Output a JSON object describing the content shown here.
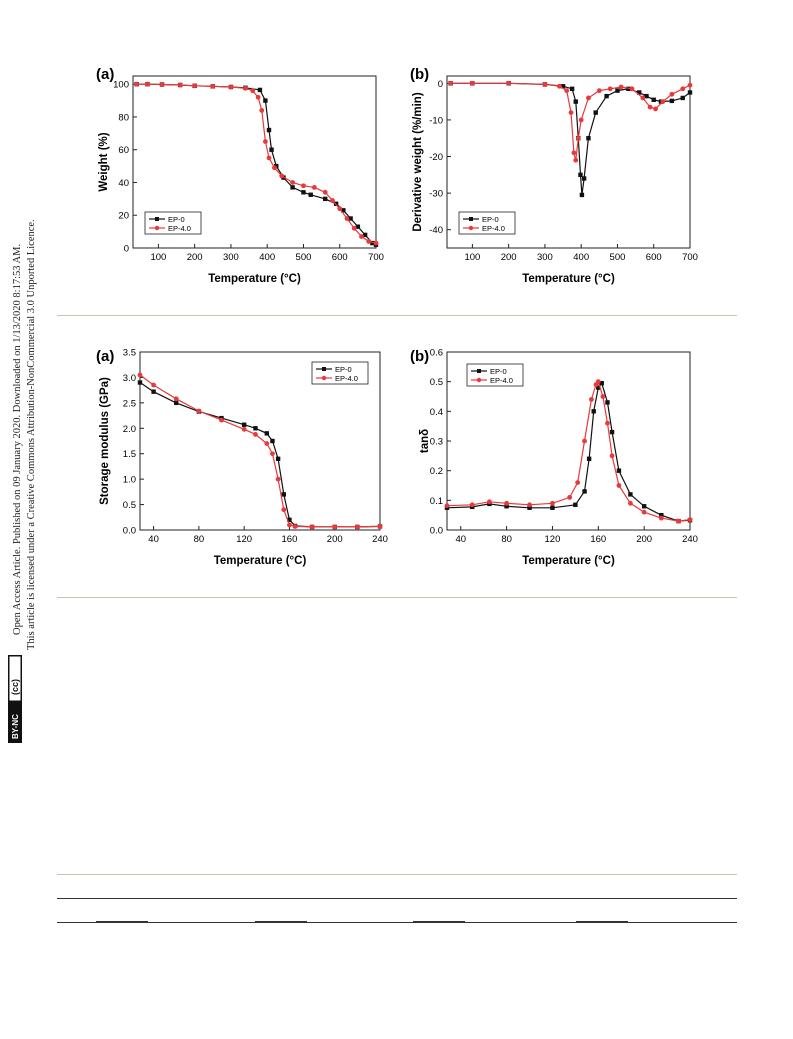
{
  "sidebar": {
    "line1": "Open Access Article. Published on 09 January 2020. Downloaded on 1/13/2020 8:17:53 AM.",
    "line2": "This article is licensed under a Creative Commons Attribution-NonCommercial 3.0 Unported Licence.",
    "badge_cc": "(cc)",
    "badge_text": "BY-NC"
  },
  "colors": {
    "series_a": "#111111",
    "series_b": "#e8393b",
    "rule_light": "#c8c6a8",
    "rule_dark": "#333333"
  },
  "chart_data": [
    {
      "id": "tga-weight",
      "panel": "(a)",
      "type": "line",
      "xlabel": "Temperature (°C)",
      "ylabel": "Weight (%)",
      "xlim": [
        30,
        700
      ],
      "ylim": [
        0,
        105
      ],
      "xticks": [
        100,
        200,
        300,
        400,
        500,
        600,
        700
      ],
      "yticks": [
        0,
        20,
        40,
        60,
        80,
        100
      ],
      "legend": "bottom-left",
      "series": [
        {
          "name": "EP-0",
          "marker": "square",
          "points": [
            [
              40,
              100
            ],
            [
              70,
              100
            ],
            [
              110,
              99.8
            ],
            [
              160,
              99.5
            ],
            [
              200,
              99
            ],
            [
              250,
              98.7
            ],
            [
              300,
              98.3
            ],
            [
              340,
              97.8
            ],
            [
              380,
              96.5
            ],
            [
              395,
              90
            ],
            [
              405,
              72
            ],
            [
              412,
              60
            ],
            [
              425,
              50
            ],
            [
              445,
              43
            ],
            [
              470,
              37
            ],
            [
              500,
              34
            ],
            [
              520,
              32.5
            ],
            [
              560,
              30
            ],
            [
              590,
              27
            ],
            [
              610,
              23
            ],
            [
              630,
              18
            ],
            [
              650,
              13
            ],
            [
              670,
              8
            ],
            [
              690,
              3
            ],
            [
              700,
              2
            ]
          ]
        },
        {
          "name": "EP-4.0",
          "marker": "circle",
          "points": [
            [
              40,
              100
            ],
            [
              70,
              100
            ],
            [
              110,
              99.8
            ],
            [
              160,
              99.5
            ],
            [
              200,
              99
            ],
            [
              250,
              98.7
            ],
            [
              300,
              98.3
            ],
            [
              340,
              97.5
            ],
            [
              360,
              96
            ],
            [
              375,
              92
            ],
            [
              385,
              84
            ],
            [
              395,
              65
            ],
            [
              405,
              55
            ],
            [
              420,
              49
            ],
            [
              440,
              44
            ],
            [
              470,
              40
            ],
            [
              500,
              38
            ],
            [
              530,
              37
            ],
            [
              560,
              34
            ],
            [
              580,
              29
            ],
            [
              600,
              24
            ],
            [
              620,
              18
            ],
            [
              640,
              12
            ],
            [
              660,
              7
            ],
            [
              680,
              4
            ],
            [
              700,
              3
            ]
          ]
        }
      ]
    },
    {
      "id": "dtg",
      "panel": "(b)",
      "type": "line",
      "xlabel": "Temperature (°C)",
      "ylabel": "Derivative weight (%/min)",
      "xlim": [
        30,
        700
      ],
      "ylim": [
        -45,
        2
      ],
      "xticks": [
        100,
        200,
        300,
        400,
        500,
        600,
        700
      ],
      "yticks": [
        0,
        -10,
        -20,
        -30,
        -40
      ],
      "legend": "bottom-left",
      "series": [
        {
          "name": "EP-0",
          "marker": "square",
          "points": [
            [
              40,
              0
            ],
            [
              100,
              0
            ],
            [
              200,
              0
            ],
            [
              300,
              -0.3
            ],
            [
              350,
              -0.8
            ],
            [
              375,
              -1.5
            ],
            [
              385,
              -5
            ],
            [
              392,
              -15
            ],
            [
              398,
              -25
            ],
            [
              402,
              -30.5
            ],
            [
              408,
              -26
            ],
            [
              420,
              -15
            ],
            [
              440,
              -8
            ],
            [
              470,
              -3.5
            ],
            [
              500,
              -2
            ],
            [
              530,
              -1.5
            ],
            [
              560,
              -2.5
            ],
            [
              580,
              -3.5
            ],
            [
              600,
              -4.5
            ],
            [
              620,
              -5
            ],
            [
              650,
              -4.8
            ],
            [
              680,
              -4
            ],
            [
              700,
              -2.5
            ]
          ]
        },
        {
          "name": "EP-4.0",
          "marker": "circle",
          "points": [
            [
              40,
              0
            ],
            [
              100,
              0
            ],
            [
              200,
              0
            ],
            [
              300,
              -0.3
            ],
            [
              340,
              -0.8
            ],
            [
              360,
              -2
            ],
            [
              372,
              -8
            ],
            [
              380,
              -19
            ],
            [
              385,
              -21
            ],
            [
              392,
              -15
            ],
            [
              400,
              -10
            ],
            [
              420,
              -4
            ],
            [
              450,
              -2
            ],
            [
              480,
              -1.5
            ],
            [
              510,
              -1
            ],
            [
              540,
              -1.5
            ],
            [
              570,
              -4
            ],
            [
              590,
              -6.5
            ],
            [
              605,
              -7
            ],
            [
              625,
              -5
            ],
            [
              650,
              -3
            ],
            [
              680,
              -1.5
            ],
            [
              700,
              -0.5
            ]
          ]
        }
      ]
    },
    {
      "id": "storage-modulus",
      "panel": "(a)",
      "type": "line",
      "xlabel": "Temperature (°C)",
      "ylabel": "Storage modulus (GPa)",
      "xlim": [
        28,
        240
      ],
      "ylim": [
        0,
        3.5
      ],
      "xticks": [
        40,
        80,
        120,
        160,
        200,
        240
      ],
      "yticks": [
        0.0,
        0.5,
        1.0,
        1.5,
        2.0,
        2.5,
        3.0,
        3.5
      ],
      "legend": "top-right",
      "series": [
        {
          "name": "EP-0",
          "marker": "square",
          "points": [
            [
              28,
              2.9
            ],
            [
              40,
              2.72
            ],
            [
              60,
              2.5
            ],
            [
              80,
              2.33
            ],
            [
              100,
              2.2
            ],
            [
              120,
              2.07
            ],
            [
              130,
              2.0
            ],
            [
              140,
              1.9
            ],
            [
              145,
              1.75
            ],
            [
              150,
              1.4
            ],
            [
              155,
              0.7
            ],
            [
              160,
              0.2
            ],
            [
              165,
              0.08
            ],
            [
              180,
              0.06
            ],
            [
              200,
              0.06
            ],
            [
              220,
              0.06
            ],
            [
              240,
              0.07
            ]
          ]
        },
        {
          "name": "EP-4.0",
          "marker": "circle",
          "points": [
            [
              28,
              3.05
            ],
            [
              40,
              2.85
            ],
            [
              60,
              2.58
            ],
            [
              80,
              2.34
            ],
            [
              100,
              2.16
            ],
            [
              120,
              1.98
            ],
            [
              130,
              1.88
            ],
            [
              140,
              1.7
            ],
            [
              145,
              1.5
            ],
            [
              150,
              1.0
            ],
            [
              155,
              0.4
            ],
            [
              160,
              0.1
            ],
            [
              165,
              0.07
            ],
            [
              180,
              0.06
            ],
            [
              200,
              0.06
            ],
            [
              220,
              0.06
            ],
            [
              240,
              0.07
            ]
          ]
        }
      ]
    },
    {
      "id": "tan-delta",
      "panel": "(b)",
      "type": "line",
      "xlabel": "Temperature (°C)",
      "ylabel": "tanδ",
      "xlim": [
        28,
        240
      ],
      "ylim": [
        0,
        0.6
      ],
      "xticks": [
        40,
        80,
        120,
        160,
        200,
        240
      ],
      "yticks": [
        0.0,
        0.1,
        0.2,
        0.3,
        0.4,
        0.5,
        0.6
      ],
      "legend": "top-left",
      "series": [
        {
          "name": "EP-0",
          "marker": "square",
          "points": [
            [
              28,
              0.075
            ],
            [
              50,
              0.078
            ],
            [
              65,
              0.088
            ],
            [
              80,
              0.08
            ],
            [
              100,
              0.075
            ],
            [
              120,
              0.075
            ],
            [
              140,
              0.085
            ],
            [
              148,
              0.13
            ],
            [
              152,
              0.24
            ],
            [
              156,
              0.4
            ],
            [
              160,
              0.48
            ],
            [
              163,
              0.495
            ],
            [
              168,
              0.43
            ],
            [
              172,
              0.33
            ],
            [
              178,
              0.2
            ],
            [
              188,
              0.12
            ],
            [
              200,
              0.08
            ],
            [
              215,
              0.05
            ],
            [
              230,
              0.03
            ],
            [
              240,
              0.033
            ]
          ]
        },
        {
          "name": "EP-4.0",
          "marker": "circle",
          "points": [
            [
              28,
              0.082
            ],
            [
              50,
              0.085
            ],
            [
              65,
              0.095
            ],
            [
              80,
              0.09
            ],
            [
              100,
              0.085
            ],
            [
              120,
              0.09
            ],
            [
              135,
              0.11
            ],
            [
              142,
              0.16
            ],
            [
              148,
              0.3
            ],
            [
              154,
              0.44
            ],
            [
              158,
              0.49
            ],
            [
              160,
              0.5
            ],
            [
              164,
              0.45
            ],
            [
              168,
              0.36
            ],
            [
              172,
              0.25
            ],
            [
              178,
              0.15
            ],
            [
              188,
              0.09
            ],
            [
              200,
              0.06
            ],
            [
              215,
              0.04
            ],
            [
              230,
              0.03
            ],
            [
              240,
              0.035
            ]
          ]
        }
      ]
    }
  ]
}
